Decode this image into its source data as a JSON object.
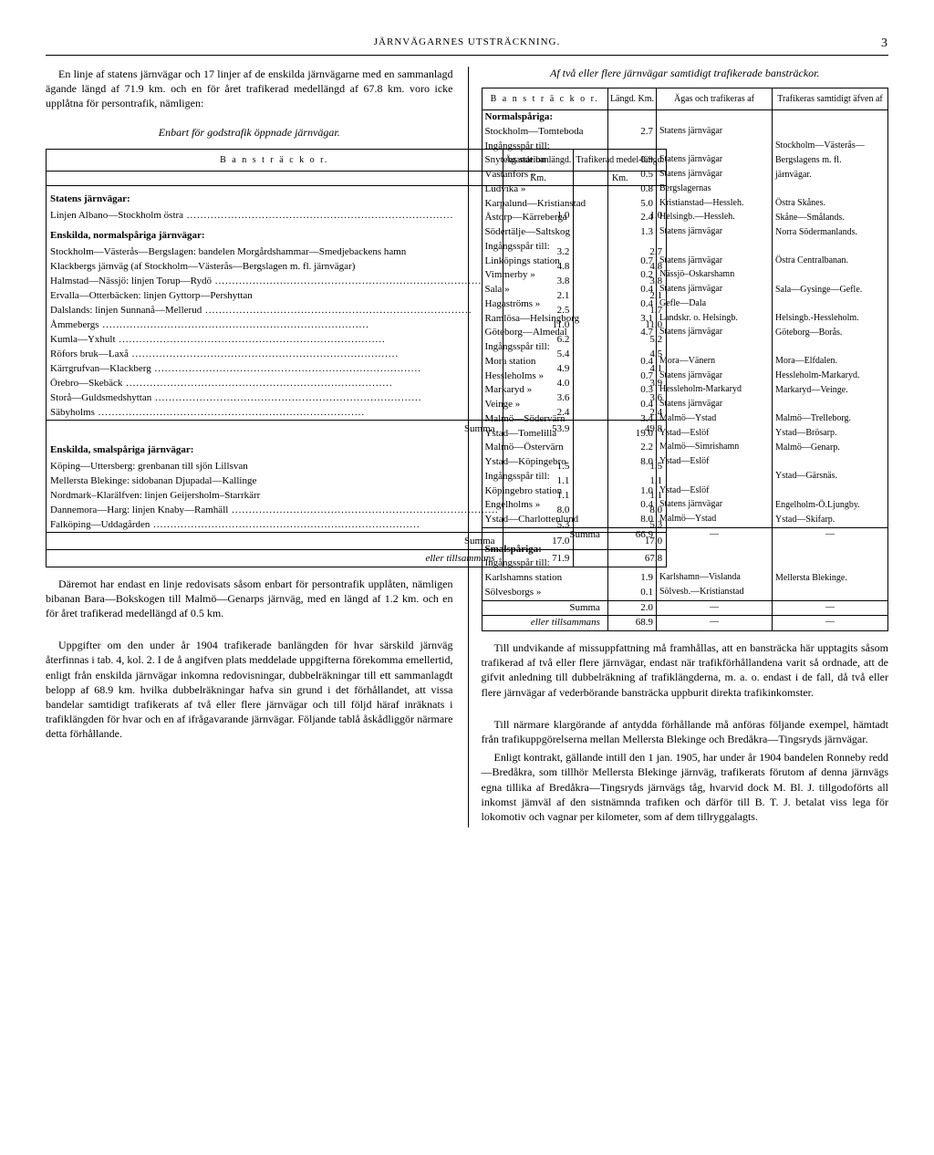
{
  "header": {
    "title": "JÄRNVÄGARNES UTSTRÄCKNING.",
    "page": "3"
  },
  "left": {
    "intro": "En linje af statens järnvägar och 17 linjer af de enskilda järnvägarne med en sammanlagd ägande längd af 71.9 km. och en för året trafikerad medellängd af 67.8 km. voro icke upplåtna för persontrafik, nämligen:",
    "table1_title": "Enbart för godstrafik öppnade järnvägar.",
    "t1": {
      "col_head": "B a n s t r ä c k o r.",
      "h1": "Ägande banlängd.",
      "h2": "Trafikerad medel-längd.",
      "unit": "Km.",
      "sub1": "Statens järnvägar:",
      "r1": {
        "label": "Linjen Albano—Stockholm östra",
        "a": "1.0",
        "b": "1.0"
      },
      "sub2": "Enskilda, normalspåriga järnvägar:",
      "r2": {
        "label": "Stockholm—Västerås—Bergslagen: bandelen Morgårdshammar—Smedjebackens hamn",
        "a": "3.2",
        "b": "2.7"
      },
      "r3": {
        "label": "Klackbergs järnväg (af Stockholm—Västerås—Bergslagen m. fl. järnvägar)",
        "a": "4.8",
        "b": "4.8"
      },
      "r4": {
        "label": "Halmstad—Nässjö: linjen Torup—Rydö",
        "a": "3.8",
        "b": "3.8"
      },
      "r5": {
        "label": "Ervalla—Otterbäcken: linjen Gyttorp—Pershyttan",
        "a": "2.1",
        "b": "2.1"
      },
      "r6": {
        "label": "Dalslands: linjen Sunnanå—Mellerud",
        "a": "2.5",
        "b": "1.7"
      },
      "r7": {
        "label": "Åmmebergs",
        "a": "11.0",
        "b": "11.0"
      },
      "r8": {
        "label": "Kumla—Yxhult",
        "a": "6.2",
        "b": "5.2"
      },
      "r9": {
        "label": "Röfors bruk—Laxå",
        "a": "5.4",
        "b": "4.5"
      },
      "r10": {
        "label": "Kärrgrufvan—Klackberg",
        "a": "4.9",
        "b": "4.1"
      },
      "r11": {
        "label": "Örebro—Skebäck",
        "a": "4.0",
        "b": "3.9"
      },
      "r12": {
        "label": "Storå—Guldsmedshyttan",
        "a": "3.6",
        "b": "3.6"
      },
      "r13": {
        "label": "Säbyholms",
        "a": "2.4",
        "b": "2.4"
      },
      "sum1": {
        "label": "Summa",
        "a": "53.9",
        "b": "49.8"
      },
      "sub3": "Enskilda, smalspåriga järnvägar:",
      "r14": {
        "label": "Köping—Uttersberg: grenbanan till sjön Lillsvan",
        "a": "1.5",
        "b": "1.5"
      },
      "r15": {
        "label": "Mellersta Blekinge: sidobanan Djupadal—Kallinge",
        "a": "1.1",
        "b": "1.1"
      },
      "r16": {
        "label": "Nordmark–Klarälfven: linjen Geijersholm–Starrkärr",
        "a": "1.1",
        "b": "1.1"
      },
      "r17": {
        "label": "Dannemora—Harg: linjen Knaby—Ramhäll",
        "a": "8.0",
        "b": "8.0"
      },
      "r18": {
        "label": "Falköping—Uddagården",
        "a": "5.3",
        "b": "5.3"
      },
      "sum2": {
        "label": "Summa",
        "a": "17.0",
        "b": "17.0"
      },
      "total": {
        "label": "eller tillsammans",
        "a": "71.9",
        "b": "67.8"
      }
    },
    "para2": "Däremot har endast en linje redovisats såsom enbart för persontrafik upplåten, nämligen bibanan Bara—Bokskogen till Malmö—Genarps järnväg, med en längd af 1.2 km. och en för året trafikerad medellängd af 0.5 km.",
    "para3": "Uppgifter om den under år 1904 trafikerade banlängden för hvar särskild järnväg återfinnas i tab. 4, kol. 2. I de å angifven plats meddelade uppgifterna förekomma emellertid, enligt från enskilda järnvägar inkomna redovisningar, dubbelräkningar till ett sammanlagdt belopp af 68.9 km. hvilka dubbelräkningar hafva sin grund i det förhållandet, att vissa bandelar samtidigt trafikerats af två eller flere järnvägar och till följd häraf inräknats i trafiklängden för hvar och en af ifrågavarande järnvägar. Följande tablå åskådliggör närmare detta förhållande."
  },
  "right": {
    "title": "Af två eller flere järnvägar samtidigt trafikerade bansträckor.",
    "t2": {
      "h0": "B a n s t r ä c k o r.",
      "h1": "Längd. Km.",
      "h2": "Ägas och trafikeras af",
      "h3": "Trafikeras samtidigt äfven af",
      "sub1": "Normalspåriga:",
      "rows": [
        {
          "a": "Stockholm—Tomteboda",
          "b": "2.7",
          "c": "Statens järnvägar",
          "d": ""
        },
        {
          "a": "Ingångsspår till:",
          "b": "",
          "c": "",
          "d": "Stockholm—Västerås—"
        },
        {
          "a": "Snytens station",
          "b": "0.9",
          "c": "Statens järnvägar",
          "d": "Bergslagens m. fl."
        },
        {
          "a": "Västanfors »",
          "b": "0.5",
          "c": "Statens järnvägar",
          "d": "järnvägar."
        },
        {
          "a": "Ludvika »",
          "b": "0.8",
          "c": "Bergslagernas",
          "d": ""
        },
        {
          "a": "Karpalund—Kristianstad",
          "b": "5.0",
          "c": "Kristianstad—Hessleh.",
          "d": "Östra Skånes."
        },
        {
          "a": "Åstorp—Kärreberga",
          "b": "2.4",
          "c": "Helsingb.—Hessleh.",
          "d": "Skåne—Smålands."
        },
        {
          "a": "Södertälje—Saltskog",
          "b": "1.3",
          "c": "Statens järnvägar",
          "d": "Norra Södermanlands."
        },
        {
          "a": "Ingångsspår till:",
          "b": "",
          "c": "",
          "d": ""
        },
        {
          "a": "Linköpings station",
          "b": "0.7",
          "c": "Statens järnvägar",
          "d": "Östra Centralbanan."
        },
        {
          "a": "Vimmerby »",
          "b": "0.2",
          "c": "Nässjö–Oskarshamn",
          "d": ""
        },
        {
          "a": "Sala »",
          "b": "0.4",
          "c": "Statens järnvägar",
          "d": "Sala—Gysinge—Gefle."
        },
        {
          "a": "Hagaströms »",
          "b": "0.4",
          "c": "Gefle—Dala",
          "d": ""
        },
        {
          "a": "Ramlösa—Helsingborg",
          "b": "3.1",
          "c": "Landskr. o. Helsingb.",
          "d": "Helsingb.-Hessleholm."
        },
        {
          "a": "Göteborg—Almedal",
          "b": "4.7",
          "c": "Statens järnvägar",
          "d": "Göteborg—Borås."
        },
        {
          "a": "Ingångsspår till:",
          "b": "",
          "c": "",
          "d": ""
        },
        {
          "a": "Mora station",
          "b": "0.4",
          "c": "Mora—Vänern",
          "d": "Mora—Elfdalen."
        },
        {
          "a": "Hessleholms »",
          "b": "0.7",
          "c": "Statens järnvägar",
          "d": "Hessleholm-Markaryd."
        },
        {
          "a": "Markaryd »",
          "b": "0.3",
          "c": "Hessleholm-Markaryd",
          "d": "Markaryd—Veinge."
        },
        {
          "a": "Veinge »",
          "b": "0.4",
          "c": "Statens järnvägar",
          "d": ""
        },
        {
          "a": "Malmö—Södervärn",
          "b": "3.4",
          "c": "Malmö—Ystad",
          "d": "Malmö—Trelleborg."
        },
        {
          "a": "Ystad—Tomelilla",
          "b": "19.0",
          "c": "Ystad—Eslöf",
          "d": "Ystad—Brösarp."
        },
        {
          "a": "Malmö—Östervärn",
          "b": "2.2",
          "c": "Malmö—Simrishamn",
          "d": "Malmö—Genarp."
        },
        {
          "a": "Ystad—Köpingebro",
          "b": "8.0",
          "c": "Ystad—Eslöf",
          "d": ""
        },
        {
          "a": "Ingångsspår till:",
          "b": "",
          "c": "",
          "d": "Ystad—Gärsnäs."
        },
        {
          "a": "Köpingebro station",
          "b": "1.0",
          "c": "Ystad—Eslöf",
          "d": ""
        },
        {
          "a": "Engelholms »",
          "b": "0.4",
          "c": "Statens järnvägar",
          "d": "Engelholm-Ö.Ljungby."
        },
        {
          "a": "Ystad—Charlottenlund",
          "b": "8.0",
          "c": "Malmö—Ystad",
          "d": "Ystad—Skifarp."
        }
      ],
      "sum1": {
        "label": "Summa",
        "b": "66.9",
        "c": "—",
        "d": "—"
      },
      "sub2": "Smalspåriga:",
      "rows2": [
        {
          "a": "Ingångsspår till:",
          "b": "",
          "c": "",
          "d": ""
        },
        {
          "a": "Karlshamns station",
          "b": "1.9",
          "c": "Karlshamn—Vislanda",
          "d": "Mellersta Blekinge."
        },
        {
          "a": "Sölvesborgs »",
          "b": "0.1",
          "c": "Sölvesb.—Kristianstad",
          "d": ""
        }
      ],
      "sum2": {
        "label": "Summa",
        "b": "2.0",
        "c": "—",
        "d": "—"
      },
      "total": {
        "label": "eller tillsammans",
        "b": "68.9",
        "c": "—",
        "d": "—"
      }
    },
    "para1": "Till undvikande af missuppfattning må framhållas, att en bansträcka här upptagits såsom trafikerad af två eller flere järnvägar, endast när trafikförhållandena varit så ordnade, att de gifvit anledning till dubbelräkning af trafiklängderna, m. a. o. endast i de fall, då två eller flere järnvägar af vederbörande bansträcka uppburit direkta trafikinkomster.",
    "para2": "Till närmare klargörande af antydda förhållande må anföras följande exempel, hämtadt från trafikuppgörelserna mellan Mellersta Blekinge och Bredåkra—Tingsryds järnvägar.",
    "para3": "Enligt kontrakt, gällande intill den 1 jan. 1905, har under år 1904 bandelen Ronneby redd—Bredåkra, som tillhör Mellersta Blekinge järnväg, trafikerats förutom af denna järnvägs egna tillika af Bredåkra—Tingsryds järnvägs tåg, hvarvid dock M. Bl. J. tillgodoförts all inkomst jämväl af den sistnämnda trafiken och därför till B. T. J. betalat viss lega för lokomotiv och vagnar per kilometer, som af dem tillryggalagts."
  }
}
